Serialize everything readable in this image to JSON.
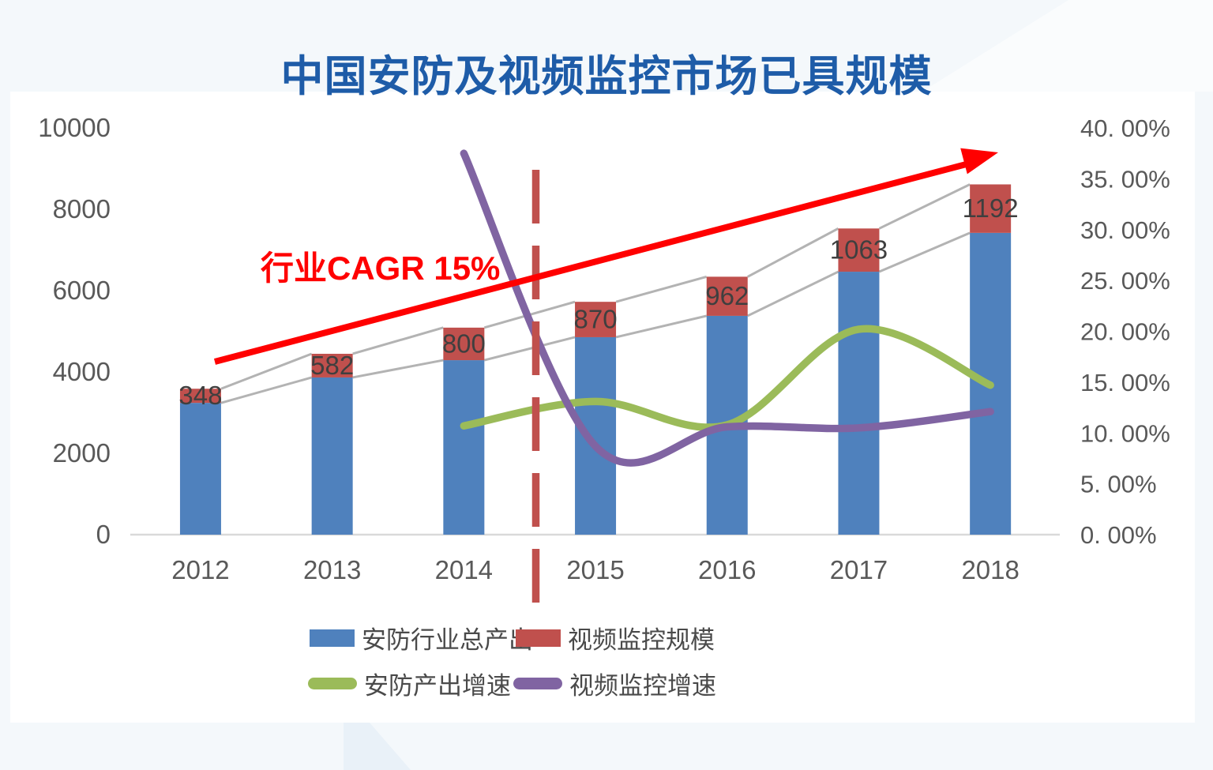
{
  "page": {
    "title": "中国安防及视频监控市场已具规模",
    "title_color": "#1e5ca8",
    "background": "#f4f8fb",
    "panel_background": "#ffffff"
  },
  "annotations": {
    "cagr_label": "行业CAGR 15%",
    "cagr_color": "#ff0000",
    "trend_arrow_color": "#ff0000",
    "divider_color": "#c0504d"
  },
  "legend": {
    "items": [
      {
        "label": "安防行业总产出",
        "color": "#4f81bd",
        "shape": "rect"
      },
      {
        "label": "视频监控规模",
        "color": "#c0504d",
        "shape": "rect"
      },
      {
        "label": "安防产出增速",
        "color": "#9bbb59",
        "shape": "line"
      },
      {
        "label": "视频监控增速",
        "color": "#8064a2",
        "shape": "line"
      }
    ]
  },
  "chart_data": {
    "type": "bar",
    "subtype": "stacked-bars-with-smooth-lines",
    "title": "中国安防及视频监控市场已具规模",
    "categories": [
      "2012",
      "2013",
      "2014",
      "2015",
      "2016",
      "2017",
      "2018"
    ],
    "series": [
      {
        "name": "安防行业总产出",
        "type": "bar",
        "axis": "left",
        "color": "#4f81bd",
        "values": [
          3240,
          3865,
          4290,
          4855,
          5380,
          6465,
          7420
        ]
      },
      {
        "name": "视频监控规模",
        "type": "bar",
        "axis": "left",
        "color": "#c0504d",
        "show_labels": true,
        "values": [
          348,
          582,
          800,
          870,
          962,
          1063,
          1192
        ]
      },
      {
        "name": "安防产出增速",
        "type": "line",
        "axis": "right",
        "color": "#9bbb59",
        "values": [
          null,
          null,
          10.7,
          13.1,
          10.8,
          20.2,
          14.7
        ]
      },
      {
        "name": "视频监控增速",
        "type": "line",
        "axis": "right",
        "color": "#8064a2",
        "values": [
          null,
          null,
          37.5,
          8.7,
          10.6,
          10.5,
          12.1
        ]
      }
    ],
    "left_axis": {
      "min": 0,
      "max": 10000,
      "ticks": [
        {
          "label": "0",
          "value": 0
        },
        {
          "label": "2000",
          "value": 2000
        },
        {
          "label": "4000",
          "value": 4000
        },
        {
          "label": "6000",
          "value": 6000
        },
        {
          "label": "8000",
          "value": 8000
        },
        {
          "label": "10000",
          "value": 10000
        }
      ]
    },
    "right_axis": {
      "min": 0,
      "max": 40,
      "ticks": [
        {
          "label": "0. 00%",
          "value": 0
        },
        {
          "label": "5. 00%",
          "value": 5
        },
        {
          "label": "10. 00%",
          "value": 10
        },
        {
          "label": "15. 00%",
          "value": 15
        },
        {
          "label": "20. 00%",
          "value": 20
        },
        {
          "label": "25. 00%",
          "value": 25
        },
        {
          "label": "30. 00%",
          "value": 30
        },
        {
          "label": "35. 00%",
          "value": 35
        },
        {
          "label": "40. 00%",
          "value": 40
        }
      ]
    },
    "grid": "off",
    "legend_position": "bottom",
    "connector_line_color": "#b3b3b3",
    "baseline_color": "#d9d9d9",
    "tick_color": "#595959",
    "bar_label_color": "#3f3f3f"
  }
}
